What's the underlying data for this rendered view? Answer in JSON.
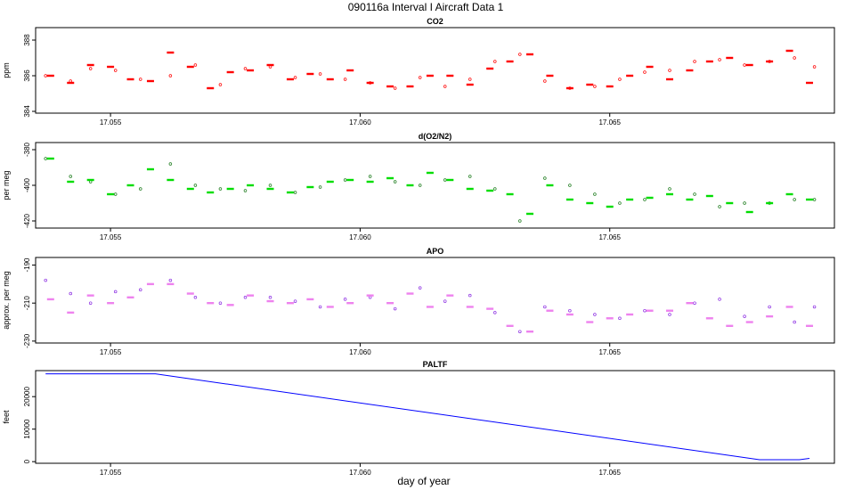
{
  "figure": {
    "title": "090116a   Interval I Aircraft Data 1",
    "xlabel": "day of year"
  },
  "chart_data": [
    {
      "type": "scatter",
      "title": "CO2",
      "ylabel": "ppm",
      "xlim": [
        17.0535,
        17.0695
      ],
      "ylim": [
        383.9,
        388.7
      ],
      "yticks": [
        384,
        386,
        388
      ],
      "xticks": [
        17.055,
        17.06,
        17.065
      ],
      "xtick_labels": [
        "17.055",
        "17.060",
        "17.065"
      ],
      "series": [
        {
          "style": "points",
          "color": "#ff0000",
          "x": [
            17.0537,
            17.0542,
            17.0546,
            17.0551,
            17.0556,
            17.0562,
            17.0567,
            17.0572,
            17.0577,
            17.0582,
            17.0587,
            17.0592,
            17.0597,
            17.0602,
            17.0607,
            17.0612,
            17.0617,
            17.0622,
            17.0627,
            17.0632,
            17.0637,
            17.0642,
            17.0647,
            17.0652,
            17.0657,
            17.0662,
            17.0667,
            17.0672,
            17.0677,
            17.0682,
            17.0687,
            17.0691
          ],
          "y": [
            386.0,
            385.7,
            386.4,
            386.3,
            385.8,
            386.0,
            386.6,
            385.5,
            386.4,
            386.5,
            385.9,
            386.1,
            385.8,
            385.6,
            385.3,
            385.9,
            385.4,
            385.8,
            386.8,
            387.2,
            385.7,
            385.3,
            385.4,
            385.8,
            386.2,
            386.3,
            386.8,
            386.9,
            386.6,
            386.8,
            387.0,
            386.5
          ]
        },
        {
          "style": "segments",
          "color": "#ff0000",
          "x": [
            17.0538,
            17.0542,
            17.0546,
            17.055,
            17.0554,
            17.0558,
            17.0562,
            17.0566,
            17.057,
            17.0574,
            17.0578,
            17.0582,
            17.0586,
            17.059,
            17.0594,
            17.0598,
            17.0602,
            17.0606,
            17.061,
            17.0614,
            17.0618,
            17.0622,
            17.0626,
            17.063,
            17.0634,
            17.0638,
            17.0642,
            17.0646,
            17.065,
            17.0654,
            17.0658,
            17.0662,
            17.0666,
            17.067,
            17.0674,
            17.0678,
            17.0682,
            17.0686,
            17.069
          ],
          "y": [
            386.0,
            385.6,
            386.6,
            386.5,
            385.8,
            385.7,
            387.3,
            386.5,
            385.3,
            386.2,
            386.3,
            386.6,
            385.8,
            386.1,
            385.8,
            386.3,
            385.6,
            385.4,
            385.4,
            386.0,
            386.0,
            385.5,
            386.4,
            386.8,
            387.2,
            386.0,
            385.3,
            385.5,
            385.4,
            386.0,
            386.5,
            385.8,
            386.3,
            386.8,
            387.0,
            386.6,
            386.8,
            387.4,
            385.6
          ]
        }
      ]
    },
    {
      "type": "scatter",
      "title": "d(O2/N2)",
      "ylabel": "per meg",
      "xlim": [
        17.0535,
        17.0695
      ],
      "ylim": [
        -424,
        -376
      ],
      "yticks": [
        -380,
        -400,
        -420
      ],
      "xticks": [
        17.055,
        17.06,
        17.065
      ],
      "xtick_labels": [
        "17.055",
        "17.060",
        "17.065"
      ],
      "series": [
        {
          "style": "points",
          "color": "#1a7a1a",
          "x": [
            17.0537,
            17.0542,
            17.0546,
            17.0551,
            17.0556,
            17.0562,
            17.0567,
            17.0572,
            17.0577,
            17.0582,
            17.0587,
            17.0592,
            17.0597,
            17.0602,
            17.0607,
            17.0612,
            17.0617,
            17.0622,
            17.0627,
            17.0632,
            17.0637,
            17.0642,
            17.0647,
            17.0652,
            17.0657,
            17.0662,
            17.0667,
            17.0672,
            17.0677,
            17.0682,
            17.0687,
            17.0691
          ],
          "y": [
            -385,
            -395,
            -398,
            -405,
            -402,
            -388,
            -400,
            -402,
            -403,
            -400,
            -404,
            -401,
            -397,
            -395,
            -398,
            -400,
            -397,
            -395,
            -402,
            -420,
            -396,
            -400,
            -405,
            -410,
            -408,
            -402,
            -405,
            -412,
            -410,
            -410,
            -408,
            -408
          ]
        },
        {
          "style": "segments",
          "color": "#00dd00",
          "x": [
            17.0538,
            17.0542,
            17.0546,
            17.055,
            17.0554,
            17.0558,
            17.0562,
            17.0566,
            17.057,
            17.0574,
            17.0578,
            17.0582,
            17.0586,
            17.059,
            17.0594,
            17.0598,
            17.0602,
            17.0606,
            17.061,
            17.0614,
            17.0618,
            17.0622,
            17.0626,
            17.063,
            17.0634,
            17.0638,
            17.0642,
            17.0646,
            17.065,
            17.0654,
            17.0658,
            17.0662,
            17.0666,
            17.067,
            17.0674,
            17.0678,
            17.0682,
            17.0686,
            17.069
          ],
          "y": [
            -385,
            -398,
            -397,
            -405,
            -400,
            -391,
            -397,
            -402,
            -404,
            -402,
            -400,
            -402,
            -404,
            -401,
            -398,
            -397,
            -398,
            -396,
            -400,
            -393,
            -397,
            -402,
            -403,
            -405,
            -416,
            -400,
            -408,
            -410,
            -412,
            -408,
            -407,
            -405,
            -408,
            -406,
            -410,
            -415,
            -410,
            -405,
            -408
          ]
        }
      ]
    },
    {
      "type": "scatter",
      "title": "APO",
      "ylabel": "approx. per meg",
      "xlim": [
        17.0535,
        17.0695
      ],
      "ylim": [
        -231,
        -186
      ],
      "yticks": [
        -190,
        -210,
        -230
      ],
      "xticks": [
        17.055,
        17.06,
        17.065
      ],
      "xtick_labels": [
        "17.055",
        "17.060",
        "17.065"
      ],
      "series": [
        {
          "style": "points",
          "color": "#8a2be2",
          "x": [
            17.0537,
            17.0542,
            17.0546,
            17.0551,
            17.0556,
            17.0562,
            17.0567,
            17.0572,
            17.0577,
            17.0582,
            17.0587,
            17.0592,
            17.0597,
            17.0602,
            17.0607,
            17.0612,
            17.0617,
            17.0622,
            17.0627,
            17.0632,
            17.0637,
            17.0642,
            17.0647,
            17.0652,
            17.0657,
            17.0662,
            17.0667,
            17.0672,
            17.0677,
            17.0682,
            17.0687,
            17.0691
          ],
          "y": [
            -198,
            -205,
            -210,
            -204,
            -203,
            -198,
            -207,
            -210,
            -207,
            -207,
            -209,
            -212,
            -208,
            -207,
            -213,
            -202,
            -209,
            -206,
            -215,
            -225,
            -212,
            -214,
            -216,
            -218,
            -214,
            -216,
            -210,
            -208,
            -217,
            -212,
            -220,
            -212
          ]
        },
        {
          "style": "segments",
          "color": "#ee82ee",
          "x": [
            17.0538,
            17.0542,
            17.0546,
            17.055,
            17.0554,
            17.0558,
            17.0562,
            17.0566,
            17.057,
            17.0574,
            17.0578,
            17.0582,
            17.0586,
            17.059,
            17.0594,
            17.0598,
            17.0602,
            17.0606,
            17.061,
            17.0614,
            17.0618,
            17.0622,
            17.0626,
            17.063,
            17.0634,
            17.0638,
            17.0642,
            17.0646,
            17.065,
            17.0654,
            17.0658,
            17.0662,
            17.0666,
            17.067,
            17.0674,
            17.0678,
            17.0682,
            17.0686,
            17.069
          ],
          "y": [
            -208,
            -215,
            -206,
            -210,
            -207,
            -200,
            -200,
            -205,
            -210,
            -211,
            -206,
            -209,
            -210,
            -208,
            -212,
            -210,
            -206,
            -210,
            -205,
            -212,
            -206,
            -212,
            -213,
            -222,
            -225,
            -214,
            -216,
            -220,
            -218,
            -216,
            -214,
            -214,
            -210,
            -218,
            -222,
            -220,
            -217,
            -212,
            -222
          ]
        }
      ]
    },
    {
      "type": "line",
      "title": "PALTF",
      "ylabel": "feet",
      "xlim": [
        17.0535,
        17.0695
      ],
      "ylim": [
        -500,
        28000
      ],
      "yticks": [
        0,
        10000,
        20000
      ],
      "xticks": [
        17.055,
        17.06,
        17.065
      ],
      "xtick_labels": [
        "17.055",
        "17.060",
        "17.065"
      ],
      "series": [
        {
          "style": "line",
          "color": "#0000ff",
          "x": [
            17.0537,
            17.0559,
            17.068,
            17.0688,
            17.069
          ],
          "y": [
            27000,
            27000,
            600,
            600,
            1000
          ]
        }
      ]
    }
  ]
}
